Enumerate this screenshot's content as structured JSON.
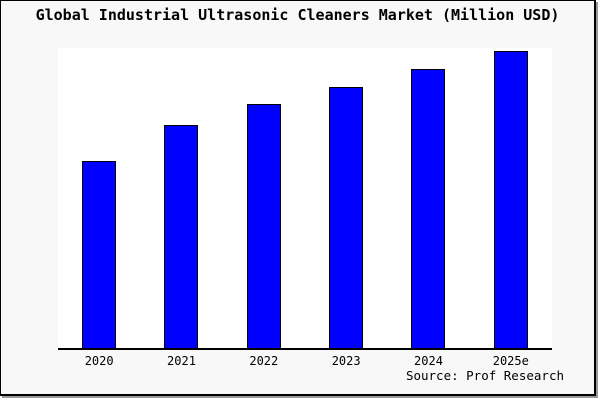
{
  "frame": {
    "title": "Global Industrial Ultrasonic Cleaners Market (Million USD)",
    "source": "Source: Prof Research"
  },
  "colors": {
    "canvas_background": "#f8f8f8",
    "plot_background": "#ffffff",
    "bar_fill": "#0000ff",
    "bar_border": "#000000",
    "axis_line": "#000000",
    "text": "#000000"
  },
  "chart_data": {
    "type": "bar",
    "title": "Global Industrial Ultrasonic Cleaners Market (Million USD)",
    "categories": [
      "2020",
      "2021",
      "2022",
      "2023",
      "2024",
      "2025e"
    ],
    "values": [
      63,
      75,
      82,
      88,
      94,
      100
    ],
    "value_note": "no y-axis ticks or data labels shown; values are relative bar heights normalized to 2025e = 100 (measured pixel heights 188, 225, 244, 263, 281, 299)",
    "xlabel": "",
    "ylabel": "",
    "ylim": [
      0,
      101
    ],
    "grid": false,
    "legend": false,
    "bar_color": "#0000ff",
    "bar_border_color": "#000000",
    "source": "Source: Prof Research"
  }
}
